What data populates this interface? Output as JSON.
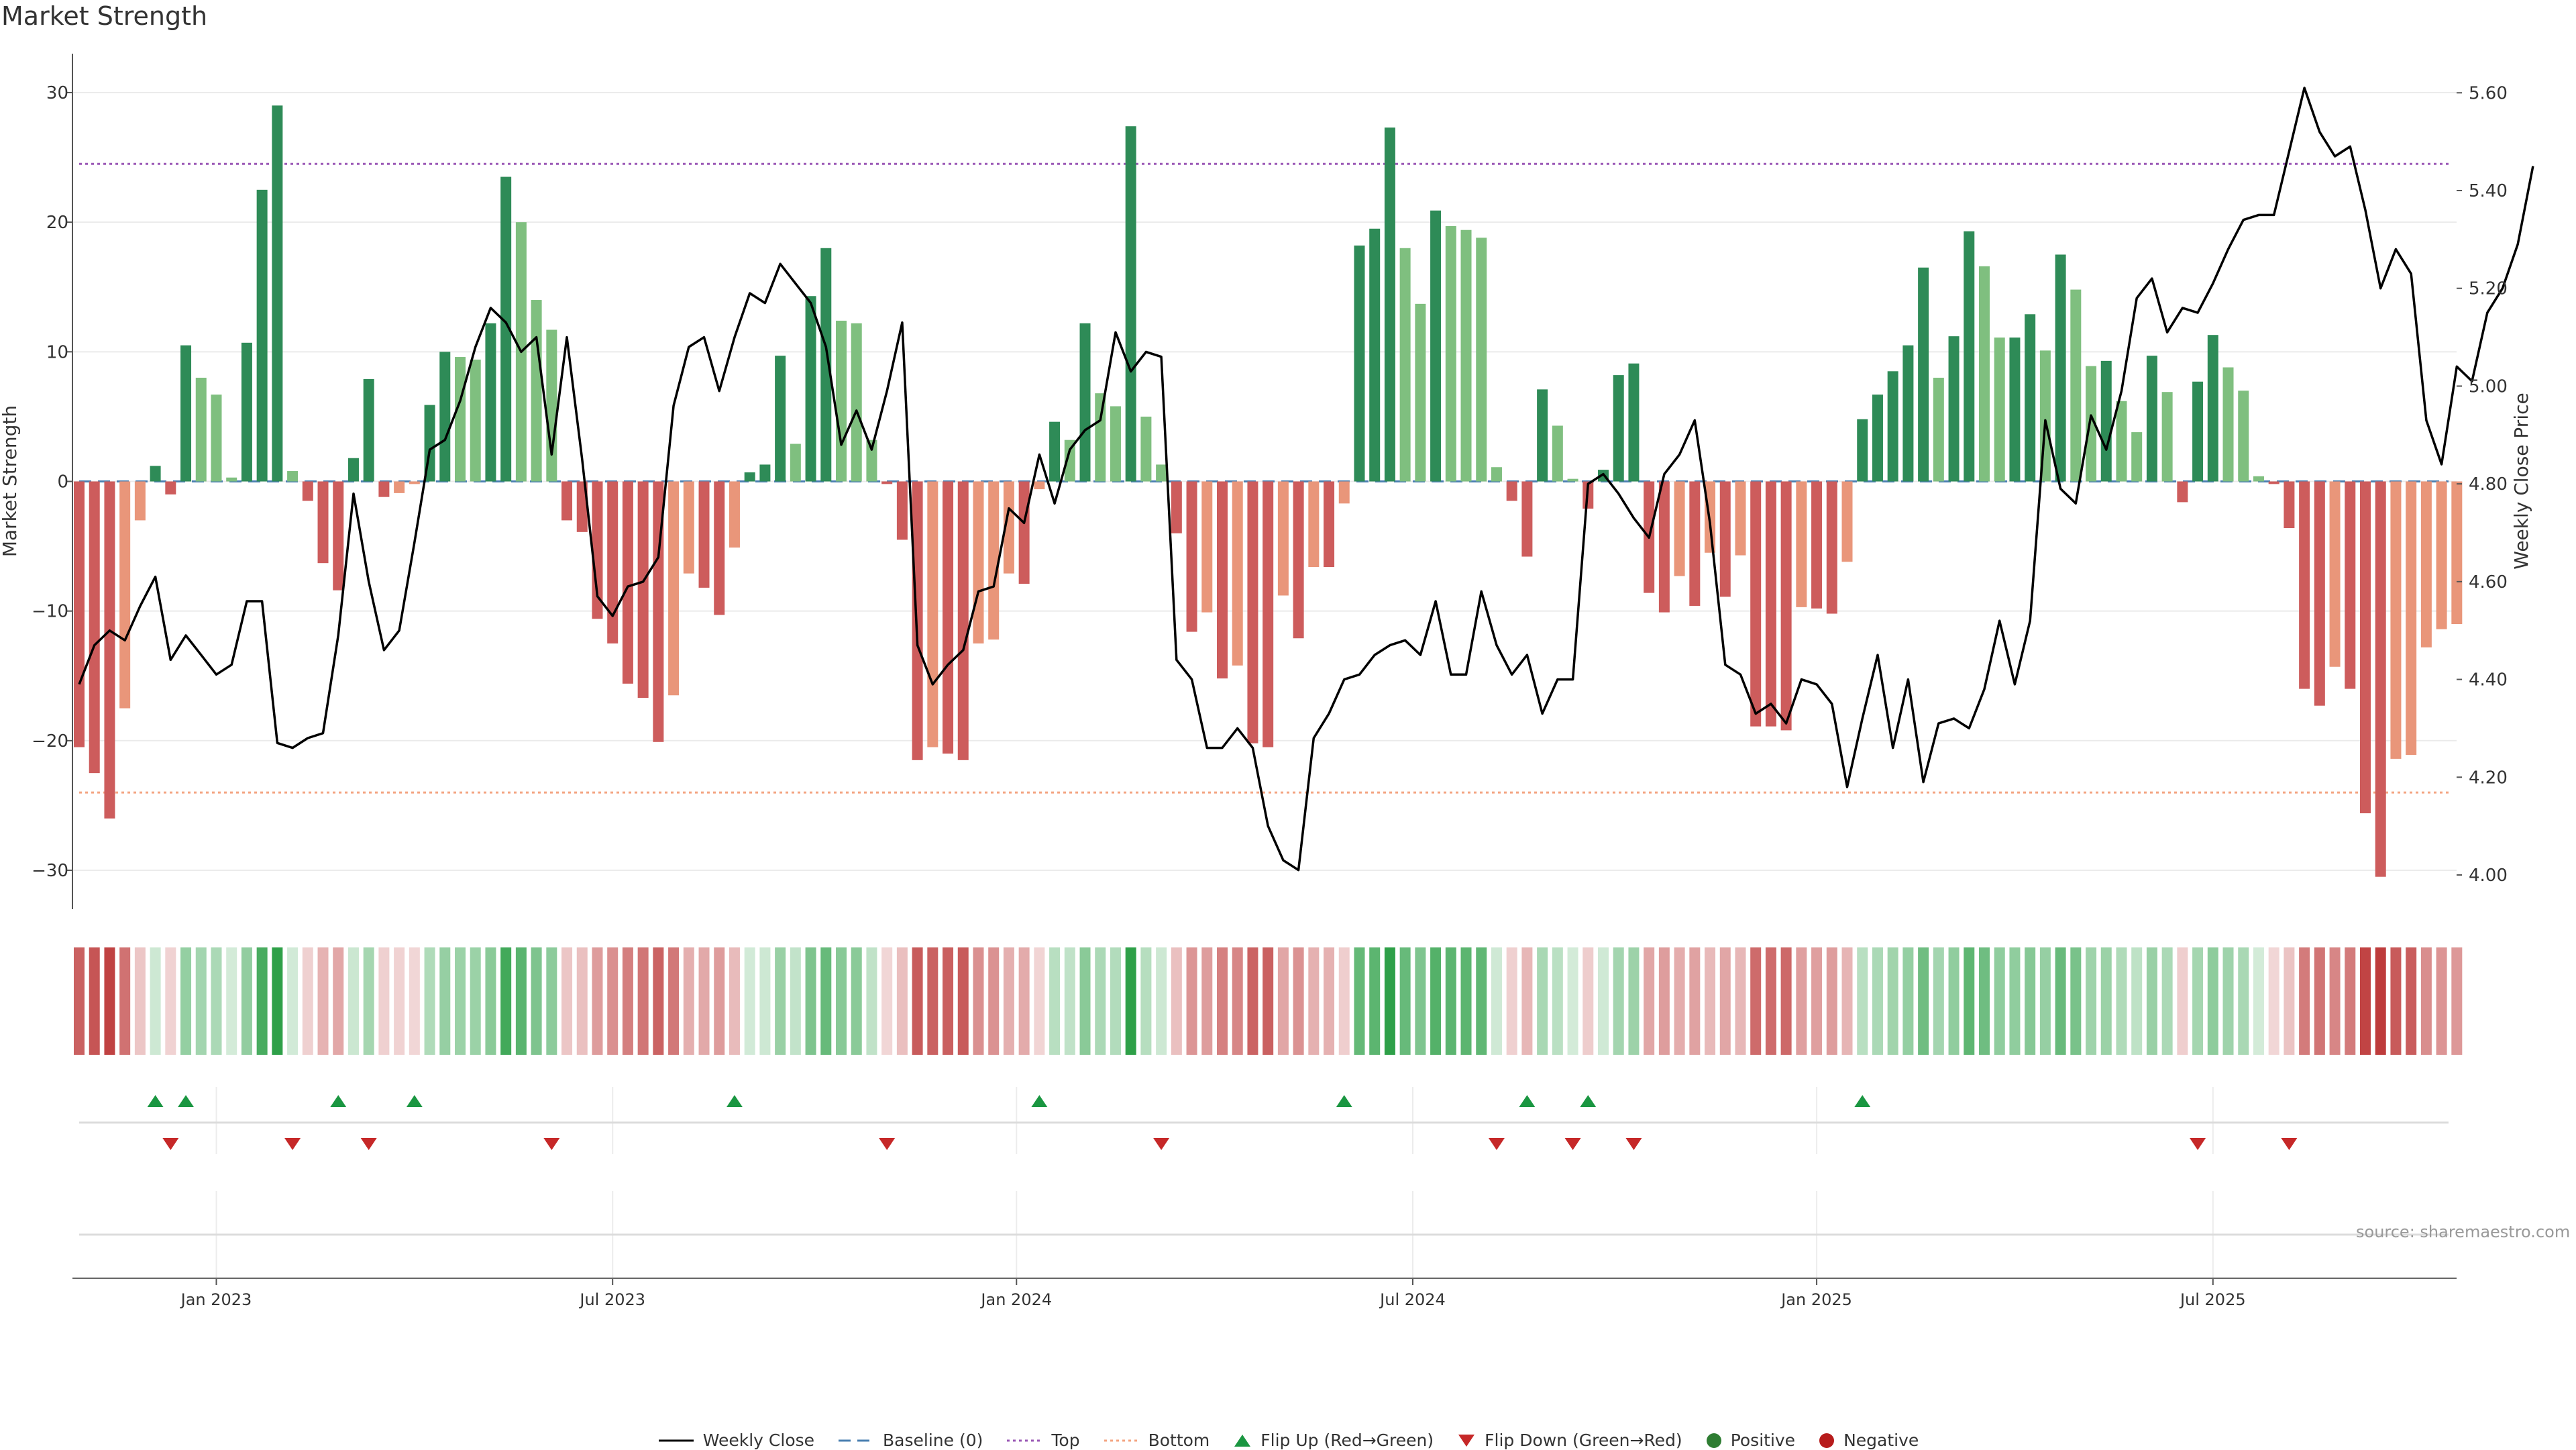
{
  "chart_data": {
    "type": "bar+line",
    "title": "Market Strength",
    "ylabel_left": "Market Strength",
    "ylabel_right": "Weekly Close Price",
    "ylim_left": [
      -33,
      33
    ],
    "ylim_right": [
      3.93,
      5.68
    ],
    "yticks_left": [
      30,
      20,
      10,
      0,
      -10,
      -20,
      -30
    ],
    "yticks_left_labels": [
      "30",
      "20",
      "10",
      "0",
      "−10",
      "−20",
      "−30"
    ],
    "yticks_right": [
      5.6,
      5.4,
      5.2,
      5.0,
      4.8,
      4.6,
      4.4,
      4.2,
      4.0
    ],
    "yticks_right_labels": [
      "5.60",
      "5.40",
      "5.20",
      "5.00",
      "4.80",
      "4.60",
      "4.40",
      "4.20",
      "4.00"
    ],
    "x_ticks": [
      {
        "label": "Jan 2023",
        "week": 9
      },
      {
        "label": "Jul 2023",
        "week": 35
      },
      {
        "label": "Jan 2024",
        "week": 61.5
      },
      {
        "label": "Jul 2024",
        "week": 87.5
      },
      {
        "label": "Jan 2025",
        "week": 114
      },
      {
        "label": "Jul 2025",
        "week": 140
      }
    ],
    "top_threshold": 24.5,
    "bottom_threshold": -24,
    "strength": [
      -20.5,
      -22.5,
      -26,
      -17.5,
      -3,
      1.2,
      -1,
      10.5,
      8,
      6.7,
      0.3,
      10.7,
      22.5,
      29,
      0.8,
      -1.5,
      -6.3,
      -8.4,
      1.8,
      7.9,
      -1.2,
      -0.9,
      -0.2,
      5.9,
      10,
      9.6,
      9.4,
      12.2,
      23.5,
      20,
      14,
      11.7,
      -3,
      -3.9,
      -10.6,
      -12.5,
      -15.6,
      -16.7,
      -20.1,
      -16.5,
      -7.1,
      -8.2,
      -10.3,
      -5.1,
      0.7,
      1.3,
      9.7,
      2.9,
      14.3,
      18,
      12.4,
      12.2,
      3.2,
      -0.2,
      -4.5,
      -21.5,
      -20.5,
      -21,
      -21.5,
      -12.5,
      -12.2,
      -7.1,
      -7.9,
      -0.6,
      4.6,
      3.2,
      12.2,
      6.8,
      5.8,
      27.4,
      5,
      1.3,
      -4,
      -11.6,
      -10.1,
      -15.2,
      -14.2,
      -20.2,
      -20.5,
      -8.8,
      -12.1,
      -6.6,
      -6.6,
      -1.7,
      18.2,
      19.5,
      27.3,
      18,
      13.7,
      20.9,
      19.7,
      19.4,
      18.8,
      1.1,
      -1.5,
      -5.8,
      7.1,
      4.3,
      0.2,
      -2.1,
      0.9,
      8.2,
      9.1,
      -8.6,
      -10.1,
      -7.3,
      -9.6,
      -5.5,
      -8.9,
      -5.7,
      -18.9,
      -18.9,
      -19.2,
      -9.7,
      -9.8,
      -10.2,
      -6.2,
      4.8,
      6.7,
      8.5,
      10.5,
      16.5,
      8,
      11.2,
      19.3,
      16.6,
      11.1,
      11.1,
      12.9,
      10.1,
      17.5,
      14.8,
      8.9,
      9.3,
      6.2,
      3.8,
      9.7,
      6.9,
      -1.6,
      7.7,
      11.3,
      8.8,
      7,
      0.4,
      -0.2,
      -3.6,
      -16,
      -17.3,
      -14.3,
      -16,
      -25.6,
      -30.5,
      -21.4,
      -21.1,
      -12.8,
      -11.4,
      -11
    ],
    "close": [
      4.39,
      4.47,
      4.5,
      4.48,
      4.55,
      4.61,
      4.44,
      4.49,
      4.45,
      4.41,
      4.43,
      4.56,
      4.56,
      4.27,
      4.26,
      4.28,
      4.29,
      4.49,
      4.78,
      4.6,
      4.46,
      4.5,
      4.68,
      4.87,
      4.89,
      4.97,
      5.08,
      5.16,
      5.13,
      5.07,
      5.1,
      4.86,
      5.1,
      4.85,
      4.57,
      4.53,
      4.59,
      4.6,
      4.65,
      4.96,
      5.08,
      5.1,
      4.99,
      5.1,
      5.19,
      5.17,
      5.25,
      5.21,
      5.17,
      5.08,
      4.88,
      4.95,
      4.87,
      4.99,
      5.13,
      4.47,
      4.39,
      4.43,
      4.46,
      4.58,
      4.59,
      4.75,
      4.72,
      4.86,
      4.76,
      4.87,
      4.91,
      4.93,
      5.11,
      5.03,
      5.07,
      5.06,
      4.44,
      4.4,
      4.26,
      4.26,
      4.3,
      4.26,
      4.1,
      4.03,
      4.01,
      4.28,
      4.33,
      4.4,
      4.41,
      4.45,
      4.47,
      4.48,
      4.45,
      4.56,
      4.41,
      4.41,
      4.58,
      4.47,
      4.41,
      4.45,
      4.33,
      4.4,
      4.4,
      4.8,
      4.82,
      4.78,
      4.73,
      4.69,
      4.82,
      4.86,
      4.93,
      4.72,
      4.43,
      4.41,
      4.33,
      4.35,
      4.31,
      4.4,
      4.39,
      4.35,
      4.18,
      4.32,
      4.45,
      4.26,
      4.4,
      4.19,
      4.31,
      4.32,
      4.3,
      4.38,
      4.52,
      4.39,
      4.52,
      4.93,
      4.79,
      4.76,
      4.94,
      4.87,
      4.99,
      5.18,
      5.22,
      5.11,
      5.16,
      5.15,
      5.21,
      5.28,
      5.34,
      5.35,
      5.35,
      5.48,
      5.61,
      5.52,
      5.47,
      5.49,
      5.36,
      5.2,
      5.28,
      5.23,
      4.93,
      4.84,
      5.04,
      5.01,
      5.15,
      5.2,
      5.29,
      5.45
    ],
    "flip_up_weeks": [
      5,
      7,
      17,
      22,
      43,
      63,
      83,
      95,
      99,
      117
    ],
    "flip_down_weeks": [
      6,
      14,
      19,
      31,
      53,
      71,
      93,
      98,
      102,
      139,
      145
    ],
    "series_names": [
      "Weekly Close",
      "Baseline (0)",
      "Top",
      "Bottom",
      "Flip Up (Red→Green)",
      "Flip Down (Green→Red)",
      "Positive",
      "Negative"
    ]
  },
  "legend": {
    "weekly_close": "Weekly Close",
    "baseline": "Baseline (0)",
    "top": "Top",
    "bottom": "Bottom",
    "flip_up": "Flip Up (Red→Green)",
    "flip_down": "Flip Down (Green→Red)",
    "positive": "Positive",
    "negative": "Negative"
  },
  "source": "source: sharemaestro.com",
  "colors": {
    "positive_strong": "#2e8b57",
    "positive_light": "#7fbf7f",
    "negative_strong": "#cd5c5c",
    "negative_light": "#e9967a",
    "line": "#000000",
    "baseline": "#4a7fb0",
    "top": "#9b59b6",
    "bottom": "#f4a582",
    "marker_up": "#1a9641",
    "marker_down": "#c62828",
    "dot_positive": "#2e7d32",
    "dot_negative": "#b71c1c"
  }
}
